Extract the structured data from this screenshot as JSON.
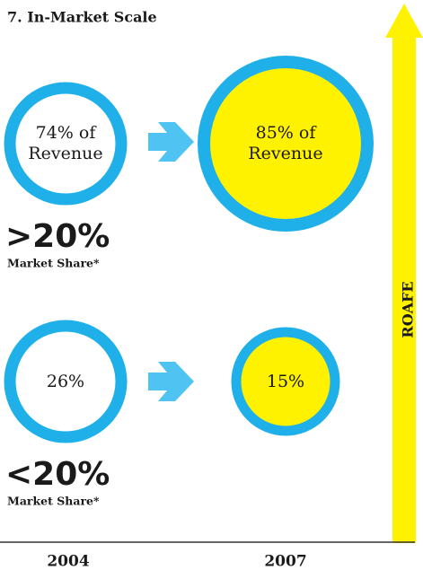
{
  "title": "7. In-Market Scale",
  "axis_label": "ROAFE",
  "groups": [
    {
      "before": [
        "74% of",
        "Revenue"
      ],
      "after": [
        "85% of",
        "Revenue"
      ],
      "label": ">20%",
      "sublabel": "Market Share*"
    },
    {
      "before": [
        "26%"
      ],
      "after": [
        "15%"
      ],
      "label": "<20%",
      "sublabel": "Market Share*"
    }
  ],
  "years": [
    "2004",
    "2007"
  ]
}
